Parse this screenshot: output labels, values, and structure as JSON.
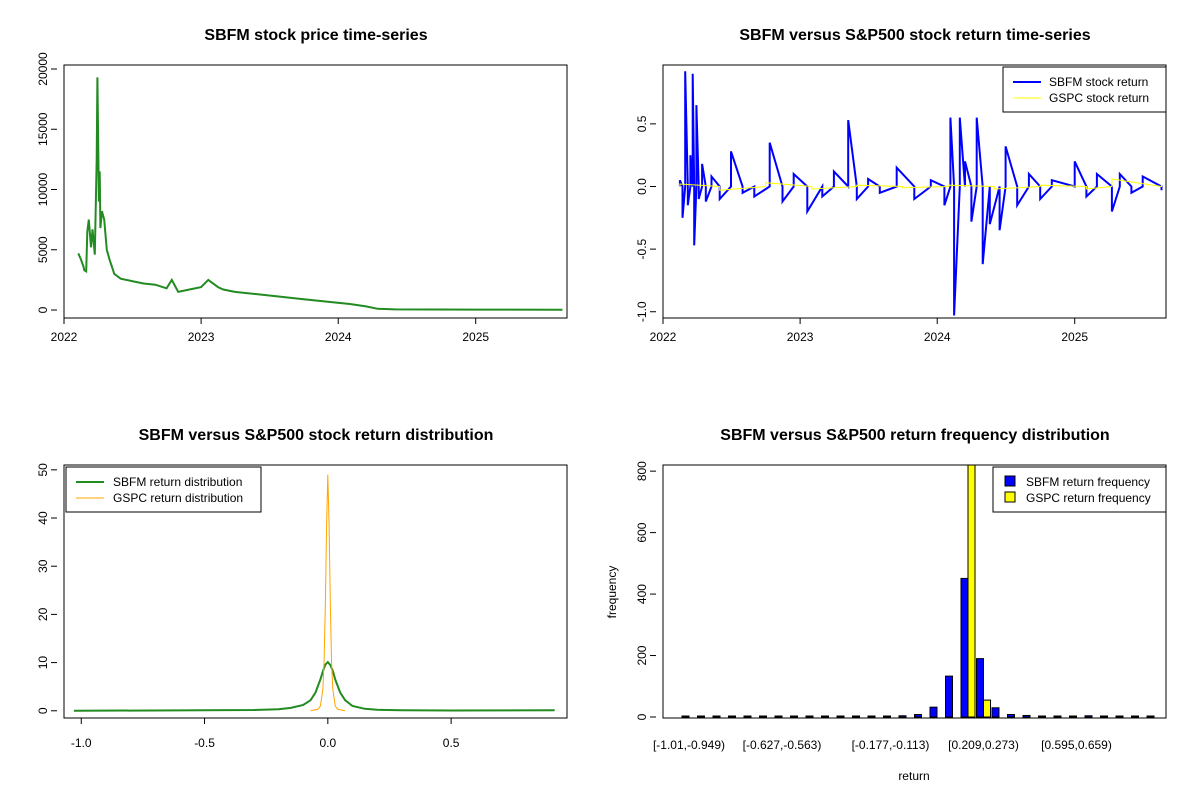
{
  "chart_data": [
    {
      "type": "line",
      "title": "SBFM stock price time-series",
      "xlabel": "",
      "ylabel": "",
      "x_ticks": [
        "2022",
        "2023",
        "2024",
        "2025"
      ],
      "y_ticks": [
        "0",
        "5000",
        "10000",
        "15000",
        "20000"
      ],
      "xlim": [
        "2022-01-01",
        "2025-09-01"
      ],
      "ylim": [
        0,
        20000
      ],
      "color": "#228B22",
      "series": [
        {
          "x": [
            "2022-02-08",
            "2022-02-15",
            "2022-02-22",
            "2022-02-24",
            "2022-03-01",
            "2022-03-04",
            "2022-03-08",
            "2022-03-14",
            "2022-03-18",
            "2022-03-24",
            "2022-03-29",
            "2022-03-31",
            "2022-04-04",
            "2022-04-06",
            "2022-04-08",
            "2022-04-12",
            "2022-04-18",
            "2022-04-25",
            "2022-05-02",
            "2022-05-15",
            "2022-06-01",
            "2022-07-01",
            "2022-08-01",
            "2022-09-01",
            "2022-10-01",
            "2022-10-15",
            "2022-11-01",
            "2022-12-01",
            "2023-01-01",
            "2023-01-20",
            "2023-02-15",
            "2023-03-01",
            "2023-04-01",
            "2023-06-01",
            "2023-08-01",
            "2023-10-01",
            "2023-12-01",
            "2024-02-01",
            "2024-03-15",
            "2024-04-15",
            "2024-06-01",
            "2025-01-01",
            "2025-08-20"
          ],
          "values": [
            4700,
            4200,
            3600,
            3300,
            3200,
            6500,
            7500,
            5200,
            6700,
            4600,
            12500,
            19300,
            9000,
            11500,
            6800,
            8200,
            7500,
            5000,
            4200,
            3000,
            2600,
            2400,
            2200,
            2100,
            1800,
            2500,
            1500,
            1700,
            1900,
            2500,
            1900,
            1700,
            1500,
            1300,
            1100,
            900,
            700,
            500,
            300,
            100,
            50,
            30,
            20
          ]
        }
      ]
    },
    {
      "type": "line",
      "title": "SBFM versus S&P500 stock return time-series",
      "xlabel": "",
      "ylabel": "",
      "x_ticks": [
        "2022",
        "2023",
        "2024",
        "2025"
      ],
      "y_ticks": [
        "-1.0",
        "-0.5",
        "0.0",
        "0.5"
      ],
      "xlim": [
        "2022-01-01",
        "2025-09-01"
      ],
      "ylim": [
        -1.05,
        0.97
      ],
      "legend_position": "top-right",
      "series": [
        {
          "name": "SBFM stock return",
          "color": "#0000FF",
          "x": [
            "2022-02-15",
            "2022-02-22",
            "2022-03-01",
            "2022-03-08",
            "2022-03-15",
            "2022-03-21",
            "2022-03-25",
            "2022-03-31",
            "2022-04-06",
            "2022-04-15",
            "2022-04-25",
            "2022-05-10",
            "2022-06-01",
            "2022-07-01",
            "2022-08-01",
            "2022-09-01",
            "2022-10-12",
            "2022-11-15",
            "2022-12-15",
            "2023-01-20",
            "2023-03-01",
            "2023-04-01",
            "2023-05-09",
            "2023-06-01",
            "2023-07-01",
            "2023-08-01",
            "2023-09-15",
            "2023-11-01",
            "2023-12-15",
            "2024-01-20",
            "2024-02-05",
            "2024-02-15",
            "2024-03-01",
            "2024-03-15",
            "2024-04-01",
            "2024-04-15",
            "2024-05-01",
            "2024-05-20",
            "2024-06-15",
            "2024-07-01",
            "2024-08-01",
            "2024-09-01",
            "2024-10-01",
            "2024-11-01",
            "2025-01-01",
            "2025-02-01",
            "2025-03-01",
            "2025-04-10",
            "2025-05-01",
            "2025-06-01",
            "2025-07-01",
            "2025-08-20"
          ],
          "values": [
            0.05,
            -0.25,
            0.92,
            -0.15,
            0.25,
            0.9,
            -0.47,
            0.65,
            -0.1,
            0.18,
            -0.12,
            0.08,
            -0.1,
            0.28,
            -0.05,
            -0.08,
            0.35,
            -0.12,
            0.1,
            -0.2,
            -0.08,
            0.12,
            0.53,
            -0.1,
            0.06,
            -0.05,
            0.15,
            -0.1,
            0.05,
            -0.15,
            0.55,
            -1.03,
            0.55,
            0.2,
            -0.28,
            0.55,
            -0.62,
            -0.3,
            -0.35,
            0.32,
            -0.15,
            0.1,
            -0.1,
            0.05,
            0.2,
            -0.08,
            0.1,
            -0.2,
            0.1,
            -0.05,
            0.08,
            -0.03
          ]
        },
        {
          "name": "GSPC stock return",
          "color": "#FFFF00",
          "x": [
            "2022-02-15",
            "2022-06-01",
            "2022-10-01",
            "2023-02-01",
            "2023-06-01",
            "2023-10-01",
            "2024-02-01",
            "2024-06-01",
            "2024-10-01",
            "2025-02-01",
            "2025-04-10",
            "2025-08-20"
          ],
          "values": [
            0.02,
            -0.03,
            0.03,
            -0.02,
            0.01,
            -0.01,
            0.01,
            -0.02,
            0.01,
            -0.02,
            0.06,
            0.01
          ]
        }
      ]
    },
    {
      "type": "line",
      "title": "SBFM versus S&P500 stock return distribution",
      "xlabel": "",
      "ylabel": "",
      "x_ticks": [
        "-1.0",
        "-0.5",
        "0.0",
        "0.5"
      ],
      "y_ticks": [
        "0",
        "10",
        "20",
        "30",
        "40",
        "50"
      ],
      "xlim": [
        -1.07,
        0.97
      ],
      "ylim": [
        -1.5,
        51
      ],
      "legend_position": "top-left",
      "series": [
        {
          "name": "SBFM return distribution",
          "color": "#228B22",
          "x": [
            -1.03,
            -0.3,
            -0.2,
            -0.15,
            -0.1,
            -0.07,
            -0.05,
            -0.03,
            -0.02,
            -0.01,
            0.0,
            0.01,
            0.02,
            0.03,
            0.05,
            0.07,
            0.1,
            0.15,
            0.2,
            0.3,
            0.5,
            0.92
          ],
          "values": [
            0,
            0.15,
            0.3,
            0.6,
            1.2,
            2.2,
            3.8,
            6.5,
            8.2,
            9.6,
            10.1,
            9.5,
            8.3,
            6.5,
            3.8,
            2.2,
            1.0,
            0.4,
            0.2,
            0.1,
            0.05,
            0.1
          ]
        },
        {
          "name": "GSPC return distribution",
          "color": "#FFA500",
          "x": [
            -0.07,
            -0.04,
            -0.03,
            -0.02,
            -0.015,
            -0.01,
            -0.005,
            0.0,
            0.005,
            0.01,
            0.015,
            0.02,
            0.03,
            0.04,
            0.07
          ],
          "values": [
            0,
            0.3,
            1.0,
            4.5,
            10.5,
            22.5,
            38.5,
            49,
            38.5,
            22.5,
            10.5,
            4.5,
            1.0,
            0.3,
            0
          ]
        }
      ]
    },
    {
      "type": "bar",
      "title": "SBFM versus S&P500 return frequency distribution",
      "xlabel": "return",
      "ylabel": "frequency",
      "x_tick_labels": [
        "[-1.01,-0.949)",
        "[-0.627,-0.563)",
        "[-0.177,-0.113)",
        "[0.209,0.273)",
        "[0.595,0.659)"
      ],
      "x_tick_bins": [
        0,
        6,
        13,
        19,
        25
      ],
      "y_ticks": [
        "0",
        "200",
        "400",
        "600",
        "800"
      ],
      "ylim": [
        0,
        820
      ],
      "legend_position": "top-right",
      "bin_count": 31,
      "zero_bin": 16,
      "series": [
        {
          "name": "SBFM return frequency",
          "color": "#0000FF",
          "values": [
            2,
            0,
            0,
            0,
            0,
            0,
            2,
            0,
            1,
            0,
            2,
            0,
            2,
            0,
            4,
            8,
            32,
            133,
            451,
            190,
            30,
            8,
            5,
            3,
            3,
            3,
            4,
            3,
            2,
            1,
            1
          ]
        },
        {
          "name": "GSPC return frequency",
          "color": "#FFFF00",
          "values": [
            0,
            0,
            0,
            0,
            0,
            0,
            0,
            0,
            0,
            0,
            0,
            0,
            0,
            0,
            0,
            0,
            0,
            0,
            820,
            55,
            0,
            0,
            0,
            0,
            0,
            0,
            0,
            0,
            0,
            0,
            0
          ]
        }
      ]
    }
  ]
}
